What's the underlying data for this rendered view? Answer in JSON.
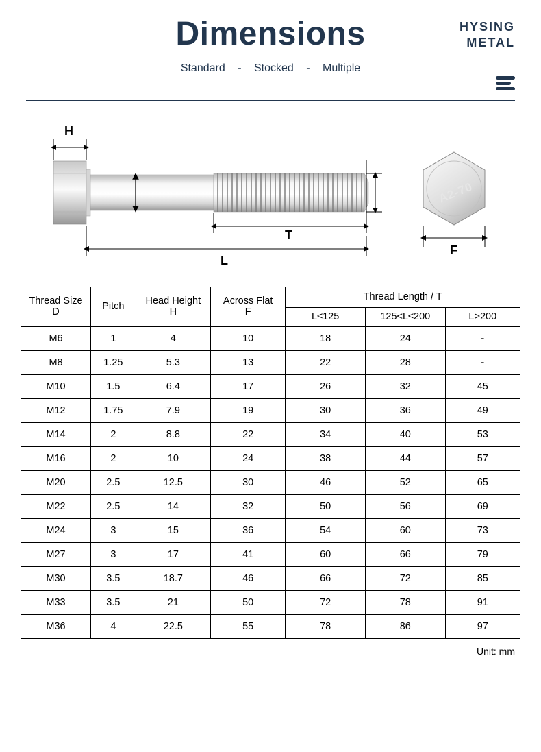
{
  "header": {
    "title": "Dimensions",
    "subtitles": [
      "Standard",
      "Stocked",
      "Multiple"
    ]
  },
  "brand": {
    "line1": "HYSING",
    "line2": "METAL"
  },
  "diagram": {
    "labels": {
      "H": "H",
      "L": "L",
      "T": "T",
      "F": "F"
    },
    "bolt_marking": "A2-70"
  },
  "table": {
    "header_group": "Thread Length / T",
    "columns": [
      "Thread Size\nD",
      "Pitch",
      "Head Height\nH",
      "Across Flat\nF",
      "L≤125",
      "125<L≤200",
      "L>200"
    ],
    "rows": [
      [
        "M6",
        "1",
        "4",
        "10",
        "18",
        "24",
        "-"
      ],
      [
        "M8",
        "1.25",
        "5.3",
        "13",
        "22",
        "28",
        "-"
      ],
      [
        "M10",
        "1.5",
        "6.4",
        "17",
        "26",
        "32",
        "45"
      ],
      [
        "M12",
        "1.75",
        "7.9",
        "19",
        "30",
        "36",
        "49"
      ],
      [
        "M14",
        "2",
        "8.8",
        "22",
        "34",
        "40",
        "53"
      ],
      [
        "M16",
        "2",
        "10",
        "24",
        "38",
        "44",
        "57"
      ],
      [
        "M20",
        "2.5",
        "12.5",
        "30",
        "46",
        "52",
        "65"
      ],
      [
        "M22",
        "2.5",
        "14",
        "32",
        "50",
        "56",
        "69"
      ],
      [
        "M24",
        "3",
        "15",
        "36",
        "54",
        "60",
        "73"
      ],
      [
        "M27",
        "3",
        "17",
        "41",
        "60",
        "66",
        "79"
      ],
      [
        "M30",
        "3.5",
        "18.7",
        "46",
        "66",
        "72",
        "85"
      ],
      [
        "M33",
        "3.5",
        "21",
        "50",
        "72",
        "78",
        "91"
      ],
      [
        "M36",
        "4",
        "22.5",
        "55",
        "78",
        "86",
        "97"
      ]
    ],
    "col_widths_pct": [
      14,
      9,
      15,
      15,
      16,
      16,
      15
    ]
  },
  "unit_label": "Unit: mm",
  "colors": {
    "text_primary": "#22364e",
    "border": "#000000",
    "bolt_light": "#f4f4f4",
    "bolt_mid": "#cfcfcf",
    "bolt_dark": "#9a9a9a"
  }
}
